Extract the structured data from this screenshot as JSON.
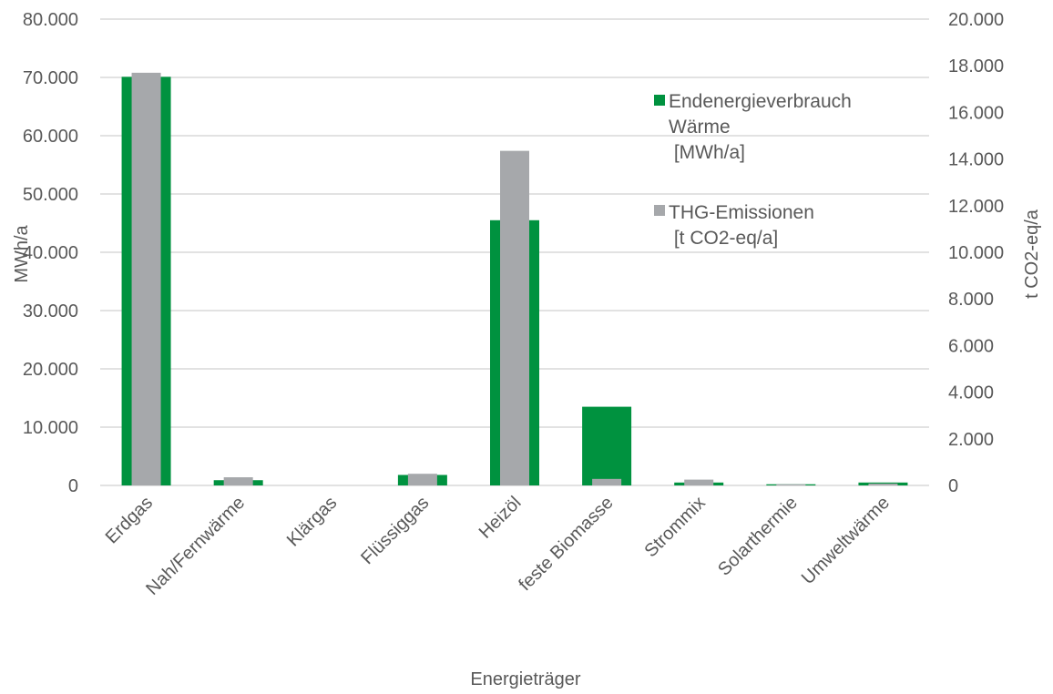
{
  "chart_data": {
    "type": "bar",
    "categories": [
      "Erdgas",
      "Nah/Fernwärme",
      "Klärgas",
      "Flüssiggas",
      "Heizöl",
      "feste Biomasse",
      "Strommix",
      "Solarthermie",
      "Umweltwärme"
    ],
    "series": [
      {
        "name_lines": [
          "Endenergieverbrauch",
          "Wärme",
          " [MWh/a]"
        ],
        "axis": "left",
        "color": "#00923f",
        "values": [
          70100,
          900,
          0,
          1800,
          45500,
          13500,
          500,
          200,
          500
        ]
      },
      {
        "name_lines": [
          "THG-Emissionen",
          " [t CO2-eq/a]"
        ],
        "axis": "right",
        "color": "#a6a8ab",
        "values": [
          17700,
          350,
          0,
          500,
          14350,
          280,
          250,
          50,
          80
        ]
      }
    ],
    "xlabel": "Energieträger",
    "ylabel_left": "MWh/a",
    "ylabel_right": "t CO2-eq/a",
    "ylim_left": [
      0,
      80000
    ],
    "ylim_right": [
      0,
      20000
    ],
    "yticks_left": [
      "0",
      "10.000",
      "20.000",
      "30.000",
      "40.000",
      "50.000",
      "60.000",
      "70.000",
      "80.000"
    ],
    "yticks_right": [
      "0",
      "2.000",
      "4.000",
      "6.000",
      "8.000",
      "10.000",
      "12.000",
      "14.000",
      "16.000",
      "18.000",
      "20.000"
    ],
    "grid": true,
    "legend_position": "top-right"
  }
}
